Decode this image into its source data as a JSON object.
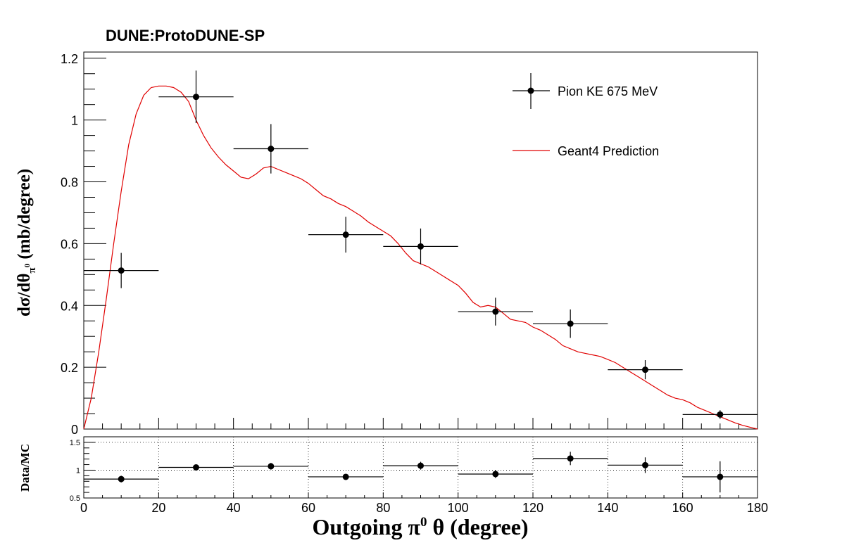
{
  "chart_data": [
    {
      "type": "scatter",
      "title": "DUNE:ProtoDUNE-SP",
      "ylabel": "dσ/dθ_π⁰ (mb/degree)",
      "xlim": [
        0,
        180
      ],
      "ylim": [
        0,
        1.22
      ],
      "x_ticks": [
        "0",
        "20",
        "40",
        "60",
        "80",
        "100",
        "120",
        "140",
        "160",
        "180"
      ],
      "y_ticks": [
        "0",
        "0.2",
        "0.4",
        "0.6",
        "0.8",
        "1",
        "1.2"
      ],
      "legend": {
        "position": "top-right",
        "entries": [
          "Pion KE 675 MeV",
          "Geant4 Prediction"
        ]
      },
      "series": [
        {
          "name": "Pion KE 675 MeV",
          "type": "errorbar",
          "color": "#000000",
          "points": [
            {
              "x": 10,
              "xerr": 10,
              "y": 0.513,
              "yerr": 0.057
            },
            {
              "x": 30,
              "xerr": 10,
              "y": 1.075,
              "yerr": 0.085
            },
            {
              "x": 50,
              "xerr": 10,
              "y": 0.907,
              "yerr": 0.08
            },
            {
              "x": 70,
              "xerr": 10,
              "y": 0.629,
              "yerr": 0.058
            },
            {
              "x": 90,
              "xerr": 10,
              "y": 0.591,
              "yerr": 0.058
            },
            {
              "x": 110,
              "xerr": 10,
              "y": 0.38,
              "yerr": 0.045
            },
            {
              "x": 130,
              "xerr": 10,
              "y": 0.341,
              "yerr": 0.046
            },
            {
              "x": 150,
              "xerr": 10,
              "y": 0.192,
              "yerr": 0.031
            },
            {
              "x": 170,
              "xerr": 10,
              "y": 0.047,
              "yerr": 0.014
            }
          ]
        },
        {
          "name": "Geant4 Prediction",
          "type": "line",
          "color": "#e00000",
          "x": [
            0,
            2,
            4,
            6,
            8,
            10,
            12,
            14,
            16,
            18,
            20,
            22,
            24,
            26,
            28,
            30,
            32,
            34,
            36,
            38,
            40,
            42,
            44,
            46,
            48,
            50,
            52,
            54,
            56,
            58,
            60,
            62,
            64,
            66,
            68,
            70,
            72,
            74,
            76,
            78,
            80,
            82,
            84,
            86,
            88,
            90,
            92,
            94,
            96,
            98,
            100,
            102,
            104,
            106,
            108,
            110,
            112,
            114,
            116,
            118,
            120,
            122,
            124,
            126,
            128,
            130,
            132,
            134,
            136,
            138,
            140,
            142,
            144,
            146,
            148,
            150,
            152,
            154,
            156,
            158,
            160,
            162,
            164,
            166,
            168,
            170,
            172,
            174,
            176,
            178,
            180
          ],
          "y": [
            0.0,
            0.1,
            0.25,
            0.42,
            0.6,
            0.77,
            0.92,
            1.02,
            1.08,
            1.105,
            1.11,
            1.11,
            1.105,
            1.09,
            1.06,
            1.0,
            0.95,
            0.91,
            0.88,
            0.855,
            0.835,
            0.815,
            0.81,
            0.825,
            0.845,
            0.85,
            0.84,
            0.83,
            0.82,
            0.81,
            0.795,
            0.775,
            0.755,
            0.745,
            0.73,
            0.72,
            0.705,
            0.69,
            0.67,
            0.655,
            0.64,
            0.625,
            0.6,
            0.57,
            0.545,
            0.535,
            0.525,
            0.51,
            0.495,
            0.48,
            0.465,
            0.44,
            0.41,
            0.395,
            0.4,
            0.395,
            0.375,
            0.355,
            0.35,
            0.345,
            0.33,
            0.32,
            0.305,
            0.29,
            0.27,
            0.26,
            0.25,
            0.245,
            0.24,
            0.235,
            0.225,
            0.215,
            0.2,
            0.185,
            0.17,
            0.155,
            0.14,
            0.125,
            0.11,
            0.1,
            0.095,
            0.085,
            0.07,
            0.06,
            0.05,
            0.04,
            0.03,
            0.02,
            0.012,
            0.006,
            0.0
          ]
        }
      ]
    },
    {
      "type": "scatter",
      "xlabel": "Outgoing  π⁰  θ (degree)",
      "ylabel": "Data/MC",
      "xlim": [
        0,
        180
      ],
      "ylim": [
        0.5,
        1.6
      ],
      "x_ticks": [
        "0",
        "20",
        "40",
        "60",
        "80",
        "100",
        "120",
        "140",
        "160",
        "180"
      ],
      "y_ticks": [
        "0.5",
        "1",
        "1.5"
      ],
      "grid": true,
      "points": [
        {
          "x": 10,
          "xerr": 10,
          "y": 0.84,
          "yerr": 0.06
        },
        {
          "x": 30,
          "xerr": 10,
          "y": 1.05,
          "yerr": 0.05
        },
        {
          "x": 50,
          "xerr": 10,
          "y": 1.07,
          "yerr": 0.06
        },
        {
          "x": 70,
          "xerr": 10,
          "y": 0.88,
          "yerr": 0.05
        },
        {
          "x": 90,
          "xerr": 10,
          "y": 1.08,
          "yerr": 0.07
        },
        {
          "x": 110,
          "xerr": 10,
          "y": 0.93,
          "yerr": 0.07
        },
        {
          "x": 130,
          "xerr": 10,
          "y": 1.21,
          "yerr": 0.12
        },
        {
          "x": 150,
          "xerr": 10,
          "y": 1.09,
          "yerr": 0.14
        },
        {
          "x": 170,
          "xerr": 10,
          "y": 0.88,
          "yerr": 0.28
        }
      ]
    }
  ]
}
